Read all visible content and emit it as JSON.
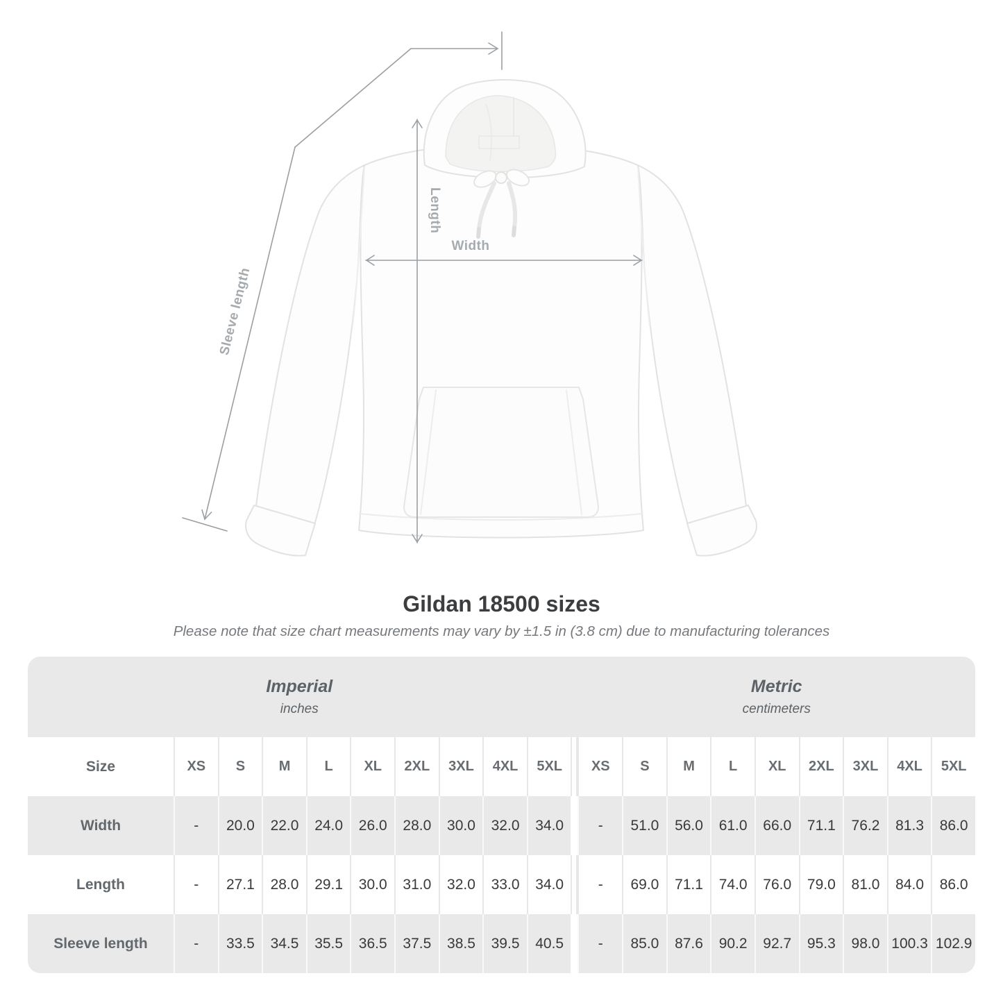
{
  "title": "Gildan 18500 sizes",
  "note": "Please note that size chart measurements may vary by ±1.5 in (3.8 cm) due to manufacturing tolerances",
  "diagram": {
    "garment": "white hooded sweatshirt",
    "labels": {
      "length": "Length",
      "width": "Width",
      "sleeve": "Sleeve length"
    }
  },
  "table": {
    "groups": [
      {
        "name": "Imperial",
        "unit": "inches"
      },
      {
        "name": "Metric",
        "unit": "centimeters"
      }
    ],
    "size_label": "Size",
    "sizes": [
      "XS",
      "S",
      "M",
      "L",
      "XL",
      "2XL",
      "3XL",
      "4XL",
      "5XL"
    ],
    "rows": [
      {
        "label": "Width",
        "imperial": [
          "-",
          "20.0",
          "22.0",
          "24.0",
          "26.0",
          "28.0",
          "30.0",
          "32.0",
          "34.0"
        ],
        "metric": [
          "-",
          "51.0",
          "56.0",
          "61.0",
          "66.0",
          "71.1",
          "76.2",
          "81.3",
          "86.0"
        ]
      },
      {
        "label": "Length",
        "imperial": [
          "-",
          "27.1",
          "28.0",
          "29.1",
          "30.0",
          "31.0",
          "32.0",
          "33.0",
          "34.0"
        ],
        "metric": [
          "-",
          "69.0",
          "71.1",
          "74.0",
          "76.0",
          "79.0",
          "81.0",
          "84.0",
          "86.0"
        ]
      },
      {
        "label": "Sleeve length",
        "imperial": [
          "-",
          "33.5",
          "34.5",
          "35.5",
          "36.5",
          "37.5",
          "38.5",
          "39.5",
          "40.5"
        ],
        "metric": [
          "-",
          "85.0",
          "87.6",
          "90.2",
          "92.7",
          "95.3",
          "98.0",
          "100.3",
          "102.9"
        ]
      }
    ]
  },
  "colors": {
    "band_gray": "#e9e9e9",
    "value_text": "#38393b",
    "heading_text": "#3b3d3f",
    "muted_text": "#75797d",
    "measure_line": "#9a9fa2",
    "measure_label": "#a5aaae"
  }
}
